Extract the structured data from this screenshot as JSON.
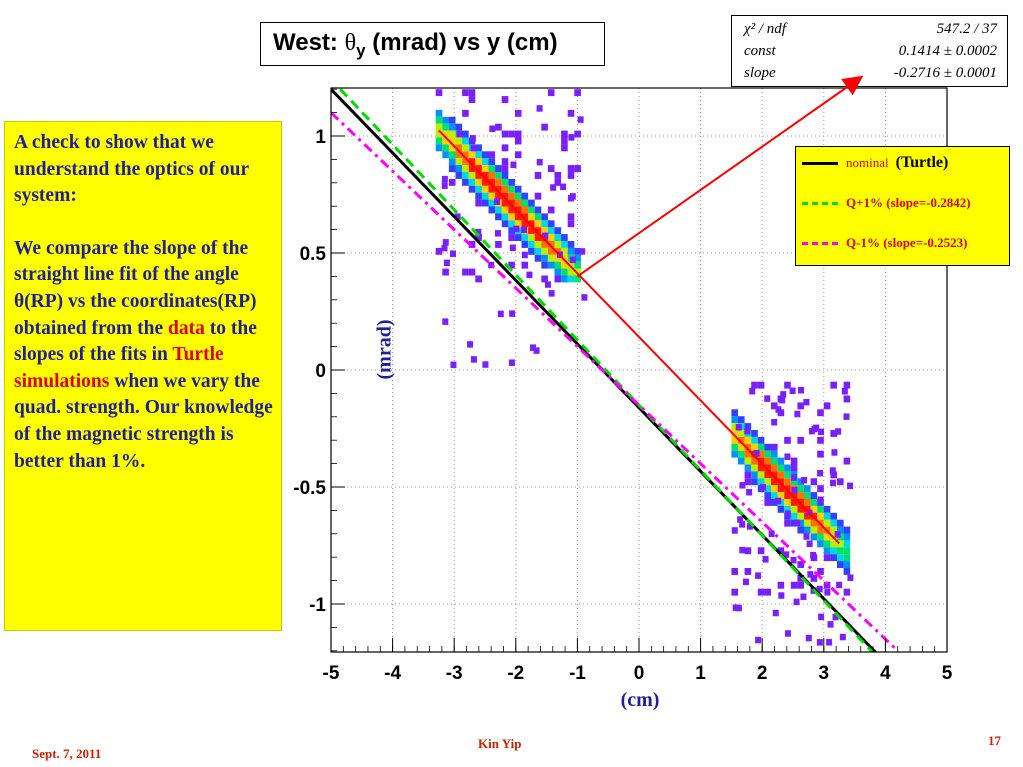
{
  "slide": {
    "left_text": {
      "para1": "A check to show that we understand the optics of our system:",
      "para2_a": "We compare the slope of the straight line fit of the angle θ(RP) vs the coordinates(RP) obtained from the ",
      "para2_data": "data",
      "para2_b": " to the slopes of the fits in ",
      "para2_turtle": "Turtle simulations",
      "para2_c": " when we vary the quad. strength.  Our knowledge of the magnetic strength is better than 1%."
    },
    "footer": {
      "date": "Sept. 7, 2011",
      "author": "Kin Yip",
      "page": "17"
    },
    "y_axis_label": "(mrad)",
    "x_axis_label": "(cm)",
    "colors": {
      "text_blue": "#1f1f9c",
      "highlight_red": "#e00000",
      "box_yellow": "#ffff00"
    }
  },
  "plot_title": {
    "prefix": "West: ",
    "theta": "θ",
    "sub": "y",
    "suffix": " (mrad) vs y (cm)"
  },
  "stats": [
    {
      "label": "χ² / ndf",
      "value": "547.2 / 37"
    },
    {
      "label": "const",
      "value": "0.1414 ± 0.0002"
    },
    {
      "label": "slope",
      "value": "-0.2716 ± 0.0001"
    }
  ],
  "legend": [
    {
      "label": "nominal",
      "extra": "(Turtle)",
      "color": "#000000",
      "style": "solid"
    },
    {
      "label": "Q+1% (slope=-0.2842)",
      "color": "#00dd00",
      "style": "dashed"
    },
    {
      "label": "Q-1% (slope=-0.2523)",
      "color": "#ff00ff",
      "style": "dashdot"
    }
  ],
  "chart_data": {
    "type": "scatter",
    "title": "West: θy (mrad) vs y (cm)",
    "xlabel": "(cm)",
    "ylabel": "(mrad)",
    "xlim": [
      -5,
      5
    ],
    "ylim": [
      -1.2,
      1.2
    ],
    "x_ticks": [
      "-5",
      "-4",
      "-3",
      "-2",
      "-1",
      "0",
      "1",
      "2",
      "3",
      "4",
      "5"
    ],
    "y_ticks": [
      "-1",
      "-0.5",
      "0",
      "0.5",
      "1"
    ],
    "grid": true,
    "clusters": [
      {
        "name": "left cluster",
        "x_center": -2.2,
        "y_center": 0.75,
        "x_range": [
          -3.3,
          -1.0
        ],
        "y_range": [
          0.4,
          1.2
        ]
      },
      {
        "name": "right cluster",
        "x_center": 2.3,
        "y_center": -0.5,
        "x_range": [
          1.5,
          3.4
        ],
        "y_range": [
          -0.95,
          -0.05
        ]
      }
    ],
    "series": [
      {
        "name": "data fit",
        "type": "line",
        "color": "#ff0000",
        "x": [
          -3.25,
          3.25
        ],
        "const": 0.1414,
        "slope": -0.2716
      },
      {
        "name": "nominal (Turtle)",
        "type": "line",
        "color": "#000000",
        "x": [
          -5.0,
          4.0
        ],
        "y": [
          1.2,
          -1.25
        ]
      },
      {
        "name": "Q+1% (slope=-0.2842)",
        "type": "line",
        "color": "#00dd00",
        "x": [
          -4.85,
          3.95
        ],
        "y": [
          1.2,
          -1.25
        ]
      },
      {
        "name": "Q-1% (slope=-0.2523)",
        "type": "line",
        "color": "#ff00ff",
        "x": [
          -5.0,
          4.2
        ],
        "y": [
          1.1,
          -1.2
        ]
      }
    ],
    "annotation": {
      "text": "arrow from fit line to slope value",
      "from": [
        -1.0,
        0.4
      ]
    }
  }
}
